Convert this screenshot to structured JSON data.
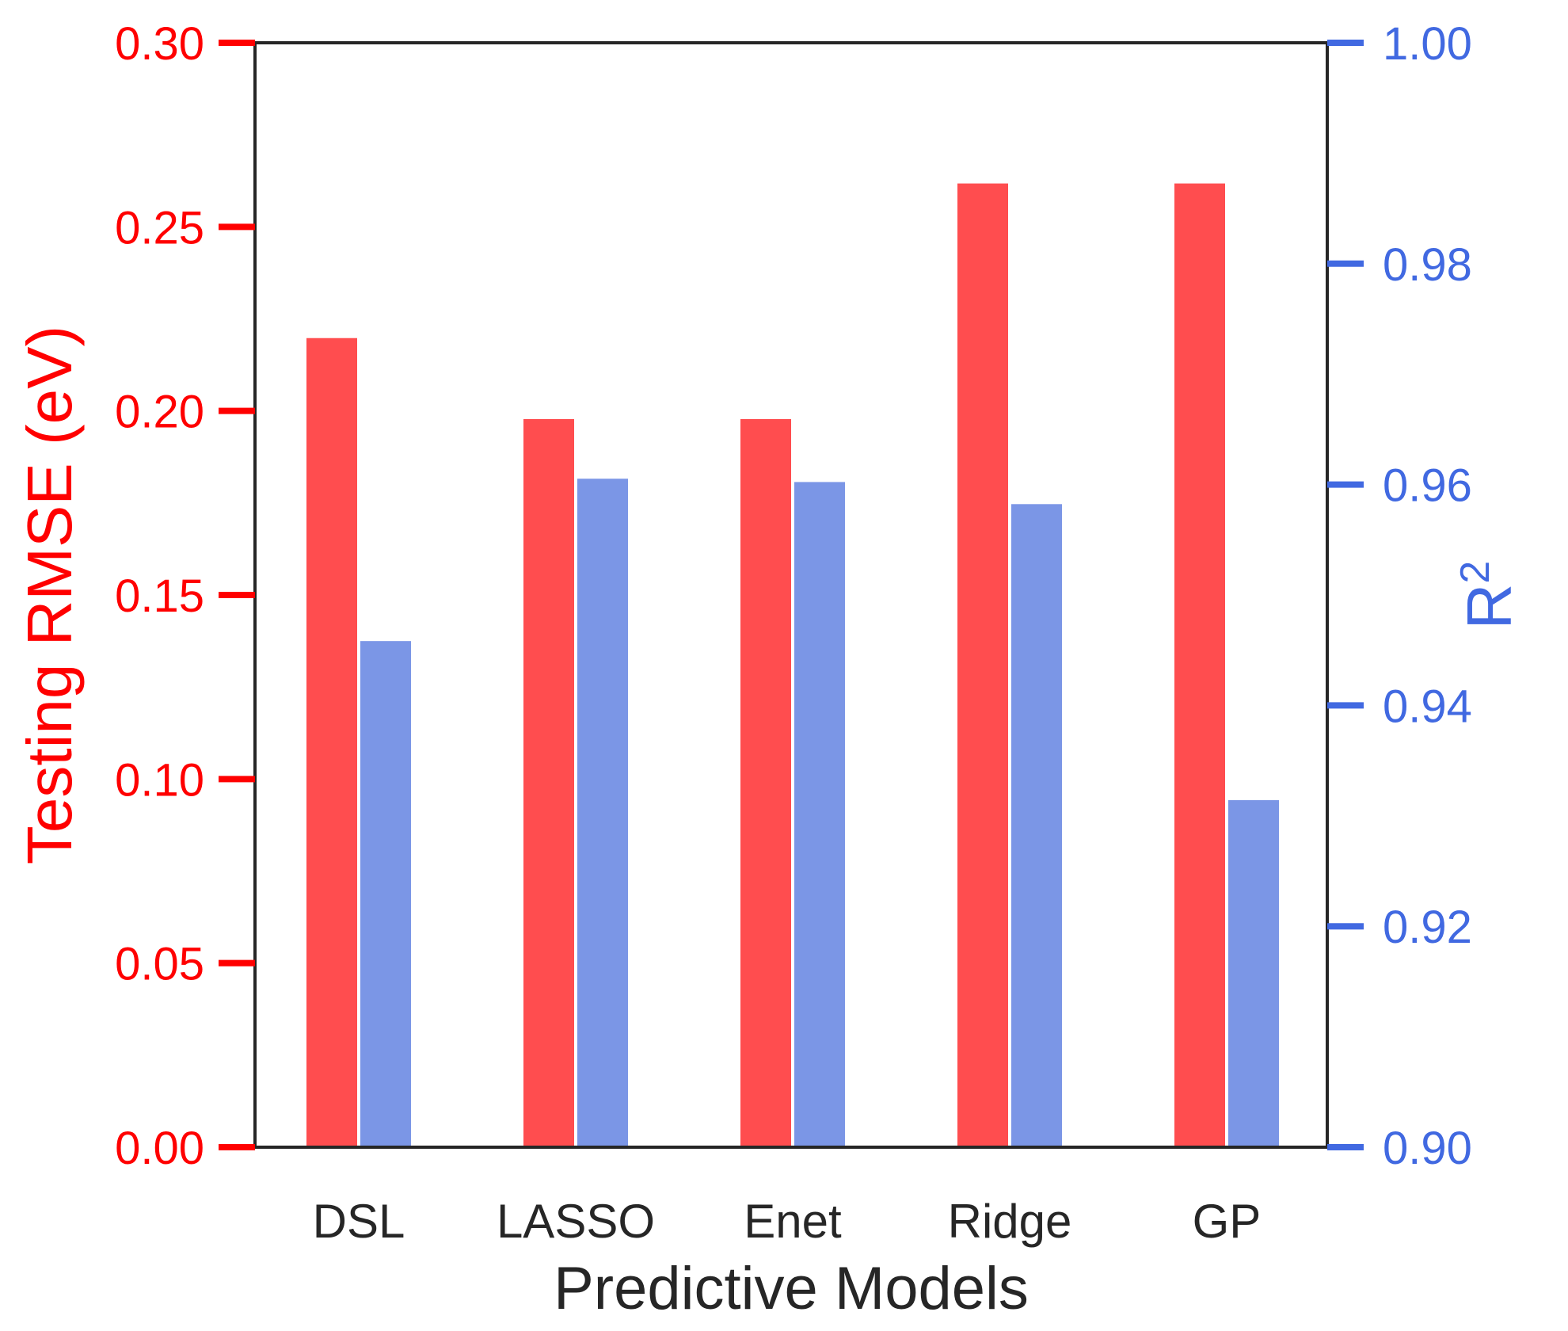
{
  "chart_data": {
    "type": "bar",
    "categories": [
      "DSL",
      "LASSO",
      "Enet",
      "Ridge",
      "GP"
    ],
    "series": [
      {
        "axis": "left",
        "color": "#ff4d4f",
        "values": [
          0.22,
          0.198,
          0.198,
          0.262,
          0.262
        ]
      },
      {
        "axis": "right",
        "color": "#7b96e6",
        "values": [
          0.9459,
          0.9606,
          0.9603,
          0.9583,
          0.9315
        ]
      }
    ],
    "xlabel": "Predictive Models",
    "ylabel_left": "Testing RMSE (eV)",
    "ylabel_right": "R",
    "ylabel_right_superscript": "2",
    "ylim_left": [
      0.0,
      0.3
    ],
    "ylim_right": [
      0.9,
      1.0
    ],
    "yticks_left": [
      "0.00",
      "0.05",
      "0.10",
      "0.15",
      "0.20",
      "0.25",
      "0.30"
    ],
    "yticks_right": [
      "0.90",
      "0.92",
      "0.94",
      "0.96",
      "0.98",
      "1.00"
    ],
    "left_axis_color": "#ff0000",
    "right_axis_color": "#4169e1",
    "grid": false,
    "legend": "none"
  }
}
